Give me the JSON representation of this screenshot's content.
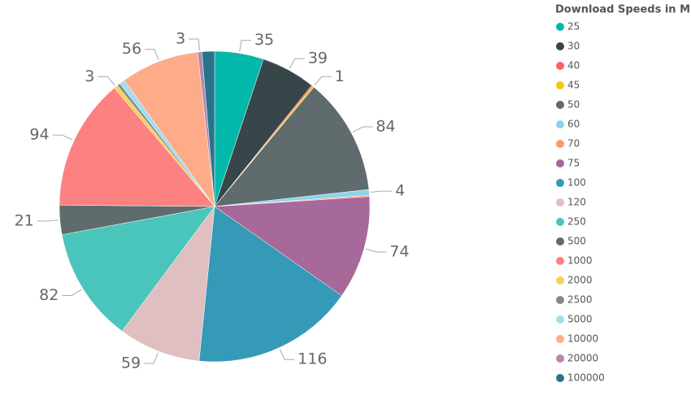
{
  "chart_data": {
    "type": "pie",
    "legend_title": "Download Speeds in Mbps",
    "categories": [
      "25",
      "30",
      "40",
      "45",
      "50",
      "60",
      "70",
      "75",
      "100",
      "120",
      "250",
      "500",
      "1000",
      "2000",
      "2500",
      "5000",
      "10000",
      "20000",
      "100000"
    ],
    "values": [
      35,
      39,
      1,
      1,
      84,
      4,
      1,
      74,
      116,
      59,
      82,
      21,
      94,
      3,
      2,
      4,
      56,
      3,
      9
    ],
    "value_labels": [
      "35",
      "39",
      null,
      "1",
      "84",
      "4",
      null,
      "74",
      "116",
      "59",
      "82",
      "21",
      "94",
      "3",
      null,
      null,
      "56",
      "3",
      null
    ],
    "colors": [
      "#01b8aa",
      "#374649",
      "#fd625e",
      "#f2c80f",
      "#5f6b6d",
      "#8ad4eb",
      "#fe9666",
      "#a66999",
      "#3599b8",
      "#dfbfbf",
      "#4ac5bb",
      "#5f6b6d",
      "#fb8281",
      "#f4d25a",
      "#7f898a",
      "#a4ddee",
      "#fdab89",
      "#b687ac",
      "#28738a"
    ],
    "legend_position": "right"
  }
}
